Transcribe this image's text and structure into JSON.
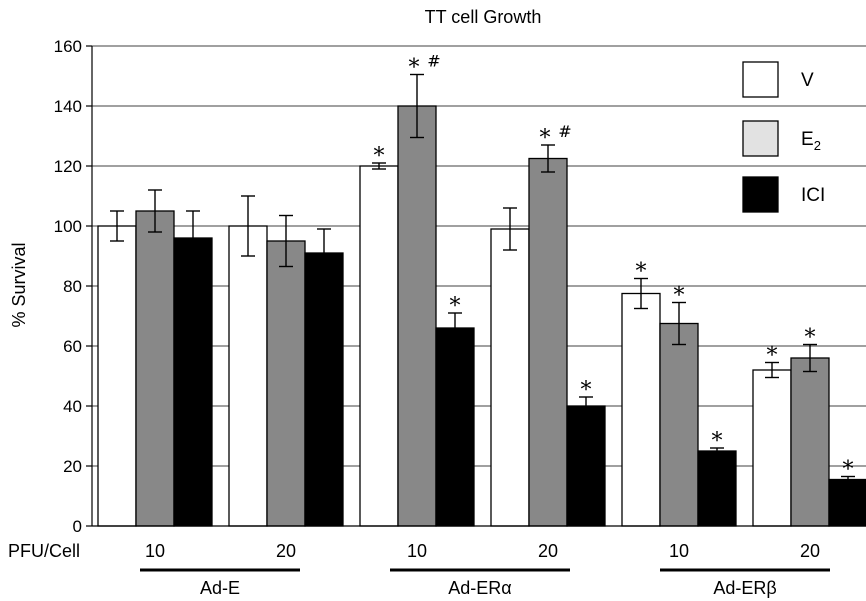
{
  "chart_data": {
    "type": "bar",
    "title": "TT cell Growth",
    "ylabel": "% Survival",
    "ylim": [
      0,
      160
    ],
    "yticks": [
      0,
      20,
      40,
      60,
      80,
      100,
      120,
      140,
      160
    ],
    "grid": true,
    "x_row_label": "PFU/Cell",
    "groups": [
      {
        "label": "Ad-E",
        "doses": [
          "10",
          "20"
        ]
      },
      {
        "label": "Ad-ERα",
        "doses": [
          "10",
          "20"
        ]
      },
      {
        "label": "Ad-ERβ",
        "doses": [
          "10",
          "20"
        ]
      }
    ],
    "categories": [
      "Ad-E 10",
      "Ad-E 20",
      "Ad-ERα 10",
      "Ad-ERα 20",
      "Ad-ERβ 10",
      "Ad-ERβ 20"
    ],
    "series": [
      {
        "name": "V",
        "color": "#ffffff",
        "values": [
          100,
          100,
          120,
          99,
          77.5,
          52
        ],
        "errors": [
          5,
          10,
          1,
          7,
          5,
          2.5
        ],
        "annotations": [
          "",
          "",
          "*",
          "",
          "*",
          "*"
        ]
      },
      {
        "name": "E2",
        "color": "#888888",
        "values": [
          105,
          95,
          140,
          122.5,
          67.5,
          56
        ],
        "errors": [
          7,
          8.5,
          10.5,
          4.5,
          7,
          4.5
        ],
        "annotations": [
          "",
          "",
          "* #",
          "* #",
          "*",
          "*"
        ]
      },
      {
        "name": "ICI",
        "color": "#000000",
        "values": [
          96,
          91,
          66,
          40,
          25,
          15.5
        ],
        "errors": [
          9,
          8,
          5,
          3,
          1,
          1
        ],
        "annotations": [
          "",
          "",
          "*",
          "*",
          "*",
          "*"
        ]
      }
    ],
    "legend": {
      "placement": "top-right",
      "items": [
        {
          "label": "V",
          "color": "#ffffff"
        },
        {
          "label": "E",
          "sub": "2",
          "color": "#e2e2e2"
        },
        {
          "label": "ICI",
          "color": "#000000"
        }
      ]
    }
  }
}
